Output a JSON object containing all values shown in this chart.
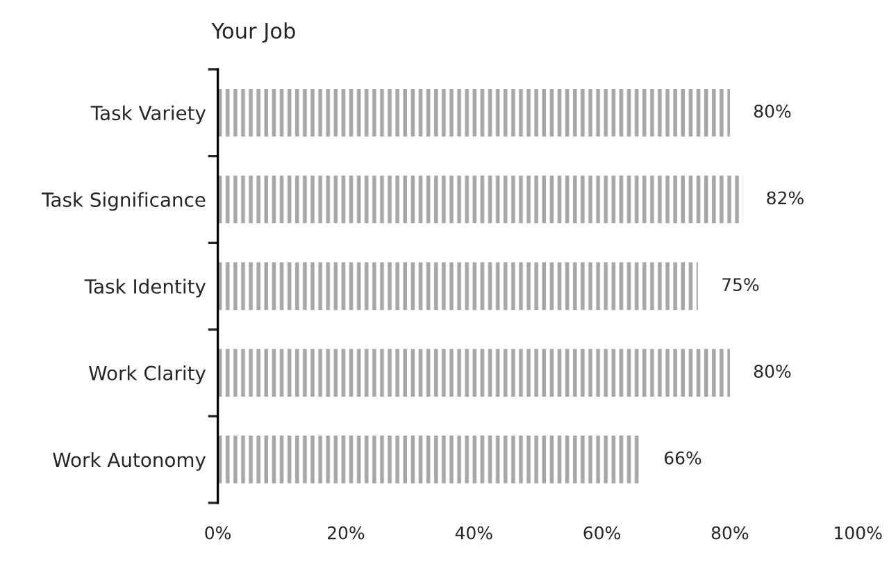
{
  "chart_data": {
    "type": "bar",
    "orientation": "horizontal",
    "title": "Your Job",
    "categories": [
      "Task Variety",
      "Task Significance",
      "Task Identity",
      "Work Clarity",
      "Work Autonomy"
    ],
    "values": [
      80,
      82,
      75,
      80,
      66
    ],
    "color": "#a6a6a6",
    "value_labels": [
      "80%",
      "82%",
      "75%",
      "80%",
      "66%"
    ],
    "xlim": [
      0,
      100
    ],
    "xticks": [
      {
        "value": 0,
        "label": "0%"
      },
      {
        "value": 20,
        "label": "20%"
      },
      {
        "value": 40,
        "label": "40%"
      },
      {
        "value": 60,
        "label": "60%"
      },
      {
        "value": 80,
        "label": "80%"
      },
      {
        "value": 100,
        "label": "100%"
      }
    ],
    "grid": false,
    "legend": false
  }
}
